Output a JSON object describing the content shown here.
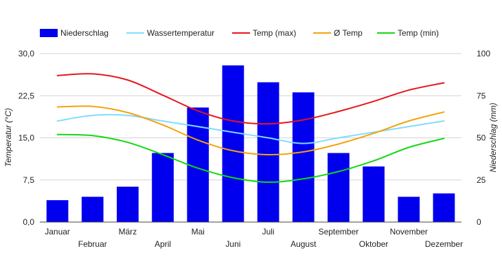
{
  "chart_data": {
    "type": "bar",
    "categories": [
      "Januar",
      "Februar",
      "März",
      "April",
      "Mai",
      "Juni",
      "Juli",
      "August",
      "September",
      "Oktober",
      "November",
      "Dezember"
    ],
    "y_left": {
      "label": "Temperatur (°C)",
      "range": [
        0,
        30
      ],
      "ticks": [
        "0,0",
        "7,5",
        "15,0",
        "22,5",
        "30,0"
      ]
    },
    "y_right": {
      "label": "Niederschlag (mm)",
      "range": [
        0,
        100
      ],
      "ticks": [
        "0",
        "25",
        "50",
        "75",
        "100"
      ]
    },
    "grid": true,
    "legend_position": "top-left",
    "series": [
      {
        "name": "Niederschlag",
        "type": "bar",
        "axis": "right",
        "color": "#0000ee",
        "values": [
          13,
          15,
          21,
          41,
          68,
          93,
          83,
          77,
          41,
          33,
          15,
          17
        ]
      },
      {
        "name": "Wassertemperatur",
        "type": "line",
        "axis": "left",
        "color": "#7fdcff",
        "values": [
          18.0,
          19.0,
          19.0,
          18.0,
          17.0,
          16.0,
          15.0,
          14.0,
          15.0,
          16.0,
          17.0,
          18.0
        ]
      },
      {
        "name": "Temp (max)",
        "type": "line",
        "axis": "left",
        "color": "#e8141a",
        "values": [
          26.1,
          26.4,
          25.3,
          22.6,
          19.8,
          18.0,
          17.5,
          18.2,
          19.7,
          21.5,
          23.5,
          24.8
        ]
      },
      {
        "name": "Ø Temp",
        "type": "line",
        "axis": "left",
        "color": "#f4a20c",
        "values": [
          20.5,
          20.6,
          19.5,
          17.3,
          14.6,
          12.7,
          12.0,
          12.5,
          13.9,
          15.8,
          18.0,
          19.6
        ]
      },
      {
        "name": "Temp (min)",
        "type": "line",
        "axis": "left",
        "color": "#12d812",
        "values": [
          15.6,
          15.4,
          14.2,
          12.0,
          9.6,
          7.9,
          7.1,
          7.7,
          9.0,
          10.9,
          13.3,
          14.9
        ]
      }
    ]
  }
}
